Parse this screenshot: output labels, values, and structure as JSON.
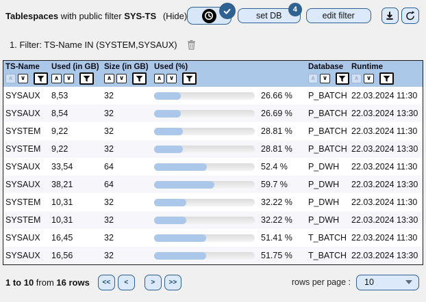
{
  "toolbar": {
    "title_app": "Tablespaces",
    "title_mid": "with public filter",
    "title_filter": "SYS-TS",
    "hide_label": "(Hide)",
    "set_db_label": "set DB",
    "set_db_badge": "4",
    "edit_filter_label": "edit filter"
  },
  "filter_bar": {
    "text": "1. Filter: TS-Name IN (SYSTEM,SYSAUX)"
  },
  "table": {
    "sort_asc_glyph": "∧",
    "sort_desc_glyph": "∨",
    "columns": [
      {
        "label": "TS-Name",
        "sort_asc_enabled": false,
        "sort_desc_enabled": true
      },
      {
        "label": "Used (in GB)",
        "sort_asc_enabled": true,
        "sort_desc_enabled": true
      },
      {
        "label": "Size (in GB)",
        "sort_asc_enabled": true,
        "sort_desc_enabled": true
      },
      {
        "label": "Used (%)",
        "sort_asc_enabled": true,
        "sort_desc_enabled": true
      },
      {
        "label": "Database",
        "sort_asc_enabled": false,
        "sort_desc_enabled": true
      },
      {
        "label": "Runtime",
        "sort_asc_enabled": false,
        "sort_desc_enabled": true
      }
    ],
    "rows": [
      {
        "ts_name": "SYSAUX",
        "used_gb": "8,53",
        "size_gb": "32",
        "used_pct": 26.66,
        "used_pct_label": "26.66 %",
        "database": "P_BATCH",
        "runtime": "22.03.2024 11:30"
      },
      {
        "ts_name": "SYSAUX",
        "used_gb": "8,54",
        "size_gb": "32",
        "used_pct": 26.69,
        "used_pct_label": "26.69 %",
        "database": "P_BATCH",
        "runtime": "22.03.2024 13:30"
      },
      {
        "ts_name": "SYSTEM",
        "used_gb": "9,22",
        "size_gb": "32",
        "used_pct": 28.81,
        "used_pct_label": "28.81 %",
        "database": "P_BATCH",
        "runtime": "22.03.2024 11:30"
      },
      {
        "ts_name": "SYSTEM",
        "used_gb": "9,22",
        "size_gb": "32",
        "used_pct": 28.81,
        "used_pct_label": "28.81 %",
        "database": "P_BATCH",
        "runtime": "22.03.2024 13:30"
      },
      {
        "ts_name": "SYSAUX",
        "used_gb": "33,54",
        "size_gb": "64",
        "used_pct": 52.4,
        "used_pct_label": "52.4 %",
        "database": "P_DWH",
        "runtime": "22.03.2024 11:30"
      },
      {
        "ts_name": "SYSAUX",
        "used_gb": "38,21",
        "size_gb": "64",
        "used_pct": 59.7,
        "used_pct_label": "59.7 %",
        "database": "P_DWH",
        "runtime": "22.03.2024 13:30"
      },
      {
        "ts_name": "SYSTEM",
        "used_gb": "10,31",
        "size_gb": "32",
        "used_pct": 32.22,
        "used_pct_label": "32.22 %",
        "database": "P_DWH",
        "runtime": "22.03.2024 11:30"
      },
      {
        "ts_name": "SYSTEM",
        "used_gb": "10,31",
        "size_gb": "32",
        "used_pct": 32.22,
        "used_pct_label": "32.22 %",
        "database": "P_DWH",
        "runtime": "22.03.2024 13:30"
      },
      {
        "ts_name": "SYSAUX",
        "used_gb": "16,45",
        "size_gb": "32",
        "used_pct": 51.41,
        "used_pct_label": "51.41 %",
        "database": "T_BATCH",
        "runtime": "22.03.2024 11:30"
      },
      {
        "ts_name": "SYSAUX",
        "used_gb": "16,56",
        "size_gb": "32",
        "used_pct": 51.75,
        "used_pct_label": "51.75 %",
        "database": "T_BATCH",
        "runtime": "22.03.2024 13:30"
      }
    ]
  },
  "footer": {
    "info_parts": [
      {
        "text": "1 to 10",
        "bold": true
      },
      {
        "text": " from ",
        "bold": false
      },
      {
        "text": "16 rows",
        "bold": true
      }
    ],
    "pagination": [
      {
        "label": "<<",
        "name": "first-page-button"
      },
      {
        "label": "<",
        "name": "prev-page-button"
      },
      {
        "label": ">",
        "name": "next-page-button"
      },
      {
        "label": ">>",
        "name": "last-page-button"
      }
    ],
    "rows_per_page_label": "rows per page :",
    "rows_per_page_value": "10"
  },
  "colors": {
    "accent_border": "#2d5f92",
    "button_bg": "#dce9fa",
    "badge_bg": "#2f6191",
    "header_bg": "#abc8e9",
    "bar_fill": "#abc7e9",
    "row_alt_bg": "#f6f6fb",
    "page_bg": "#f0f0f0"
  }
}
